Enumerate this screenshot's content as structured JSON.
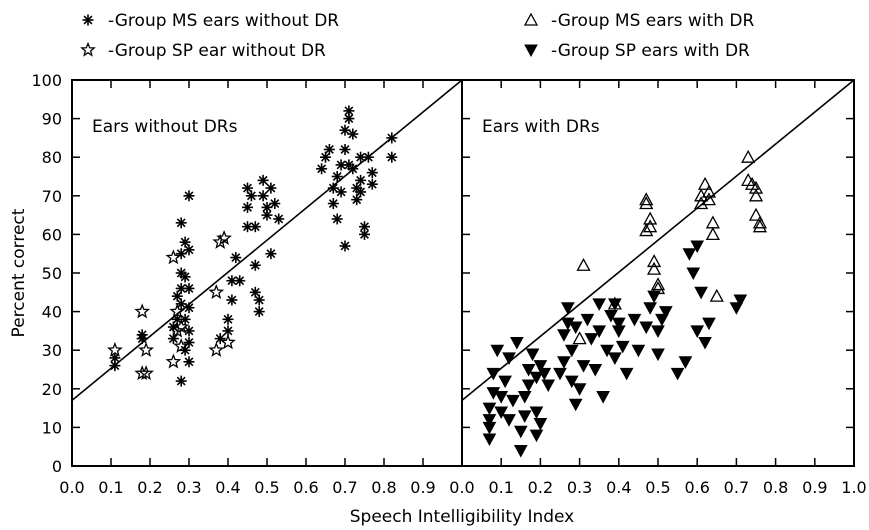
{
  "chart_data": {
    "type": "scatter",
    "xlabel": "Speech Intelligibility Index",
    "ylabel": "Percent correct",
    "xlim": [
      0,
      1.0
    ],
    "ylim": [
      0,
      100
    ],
    "yticks": [
      "0",
      "10",
      "20",
      "30",
      "40",
      "50",
      "60",
      "70",
      "80",
      "90",
      "100"
    ],
    "xticks_left": [
      "0.0",
      "0.1",
      "0.2",
      "0.3",
      "0.4",
      "0.5",
      "0.6",
      "0.7",
      "0.8",
      "0.9"
    ],
    "xticks_right": [
      "0.0",
      "0.1",
      "0.2",
      "0.3",
      "0.4",
      "0.5",
      "0.6",
      "0.7",
      "0.8",
      "0.9",
      "1.0"
    ],
    "grid": false,
    "legend": [
      {
        "label": "-Group MS ears without DR",
        "marker": "asterisk"
      },
      {
        "label": "-Group SP ear without DR",
        "marker": "star-open"
      },
      {
        "label": "-Group MS ears with DR",
        "marker": "triangle-open"
      },
      {
        "label": "-Group SP ears with DR",
        "marker": "triangle-down-filled"
      }
    ],
    "panels": [
      {
        "title": "Ears without DRs",
        "reference_line": {
          "x": [
            0,
            1.0
          ],
          "y": [
            17,
            100
          ]
        },
        "series": [
          {
            "name": "-Group MS ears without DR",
            "marker": "asterisk",
            "points": [
              [
                0.11,
                26
              ],
              [
                0.11,
                28
              ],
              [
                0.18,
                34
              ],
              [
                0.18,
                33
              ],
              [
                0.26,
                36
              ],
              [
                0.26,
                33
              ],
              [
                0.27,
                38
              ],
              [
                0.27,
                44
              ],
              [
                0.28,
                63
              ],
              [
                0.28,
                55
              ],
              [
                0.28,
                50
              ],
              [
                0.28,
                46
              ],
              [
                0.28,
                42
              ],
              [
                0.28,
                22
              ],
              [
                0.29,
                58
              ],
              [
                0.29,
                49
              ],
              [
                0.29,
                38
              ],
              [
                0.29,
                30
              ],
              [
                0.3,
                70
              ],
              [
                0.3,
                56
              ],
              [
                0.3,
                46
              ],
              [
                0.3,
                41
              ],
              [
                0.3,
                35
              ],
              [
                0.3,
                32
              ],
              [
                0.3,
                27
              ],
              [
                0.38,
                33
              ],
              [
                0.4,
                35
              ],
              [
                0.4,
                38
              ],
              [
                0.41,
                43
              ],
              [
                0.41,
                48
              ],
              [
                0.42,
                54
              ],
              [
                0.43,
                48
              ],
              [
                0.45,
                67
              ],
              [
                0.45,
                72
              ],
              [
                0.45,
                62
              ],
              [
                0.46,
                70
              ],
              [
                0.47,
                62
              ],
              [
                0.47,
                52
              ],
              [
                0.47,
                45
              ],
              [
                0.48,
                40
              ],
              [
                0.48,
                43
              ],
              [
                0.49,
                74
              ],
              [
                0.49,
                70
              ],
              [
                0.5,
                65
              ],
              [
                0.5,
                67
              ],
              [
                0.51,
                55
              ],
              [
                0.51,
                72
              ],
              [
                0.52,
                68
              ],
              [
                0.53,
                64
              ],
              [
                0.64,
                77
              ],
              [
                0.65,
                80
              ],
              [
                0.66,
                82
              ],
              [
                0.67,
                72
              ],
              [
                0.67,
                68
              ],
              [
                0.68,
                75
              ],
              [
                0.68,
                64
              ],
              [
                0.69,
                78
              ],
              [
                0.69,
                71
              ],
              [
                0.7,
                82
              ],
              [
                0.7,
                57
              ],
              [
                0.7,
                87
              ],
              [
                0.71,
                92
              ],
              [
                0.71,
                90
              ],
              [
                0.71,
                78
              ],
              [
                0.72,
                86
              ],
              [
                0.72,
                77
              ],
              [
                0.73,
                72
              ],
              [
                0.73,
                69
              ],
              [
                0.74,
                80
              ],
              [
                0.74,
                74
              ],
              [
                0.74,
                71
              ],
              [
                0.75,
                62
              ],
              [
                0.75,
                60
              ],
              [
                0.76,
                80
              ],
              [
                0.77,
                76
              ],
              [
                0.77,
                73
              ],
              [
                0.82,
                85
              ],
              [
                0.82,
                80
              ]
            ]
          },
          {
            "name": "-Group SP ear without DR",
            "marker": "star-open",
            "points": [
              [
                0.11,
                30
              ],
              [
                0.18,
                40
              ],
              [
                0.18,
                24
              ],
              [
                0.19,
                30
              ],
              [
                0.19,
                24
              ],
              [
                0.26,
                54
              ],
              [
                0.26,
                27
              ],
              [
                0.27,
                40
              ],
              [
                0.27,
                35
              ],
              [
                0.28,
                31
              ],
              [
                0.28,
                36
              ],
              [
                0.37,
                45
              ],
              [
                0.37,
                30
              ],
              [
                0.38,
                58
              ],
              [
                0.39,
                59
              ],
              [
                0.4,
                32
              ]
            ]
          }
        ]
      },
      {
        "title": "Ears with DRs",
        "reference_line": {
          "x": [
            0,
            1.0
          ],
          "y": [
            17,
            100
          ]
        },
        "series": [
          {
            "name": "-Group MS ears with DR",
            "marker": "triangle-open",
            "points": [
              [
                0.3,
                33
              ],
              [
                0.31,
                52
              ],
              [
                0.39,
                42
              ],
              [
                0.47,
                69
              ],
              [
                0.47,
                68
              ],
              [
                0.47,
                61
              ],
              [
                0.48,
                64
              ],
              [
                0.48,
                62
              ],
              [
                0.49,
                53
              ],
              [
                0.49,
                51
              ],
              [
                0.5,
                47
              ],
              [
                0.5,
                46
              ],
              [
                0.61,
                70
              ],
              [
                0.61,
                68
              ],
              [
                0.62,
                73
              ],
              [
                0.63,
                71
              ],
              [
                0.63,
                69
              ],
              [
                0.64,
                60
              ],
              [
                0.64,
                63
              ],
              [
                0.65,
                44
              ],
              [
                0.73,
                80
              ],
              [
                0.73,
                74
              ],
              [
                0.74,
                73
              ],
              [
                0.75,
                72
              ],
              [
                0.75,
                70
              ],
              [
                0.75,
                65
              ],
              [
                0.76,
                62
              ],
              [
                0.76,
                63
              ]
            ]
          },
          {
            "name": "-Group SP ears with DR",
            "marker": "triangle-down-filled",
            "points": [
              [
                0.07,
                7
              ],
              [
                0.07,
                10
              ],
              [
                0.07,
                12
              ],
              [
                0.07,
                15
              ],
              [
                0.08,
                19
              ],
              [
                0.08,
                24
              ],
              [
                0.09,
                30
              ],
              [
                0.1,
                14
              ],
              [
                0.1,
                18
              ],
              [
                0.11,
                22
              ],
              [
                0.12,
                28
              ],
              [
                0.12,
                12
              ],
              [
                0.13,
                17
              ],
              [
                0.14,
                32
              ],
              [
                0.15,
                4
              ],
              [
                0.15,
                9
              ],
              [
                0.16,
                13
              ],
              [
                0.16,
                18
              ],
              [
                0.17,
                21
              ],
              [
                0.17,
                25
              ],
              [
                0.18,
                29
              ],
              [
                0.19,
                23
              ],
              [
                0.19,
                14
              ],
              [
                0.19,
                8
              ],
              [
                0.2,
                11
              ],
              [
                0.2,
                26
              ],
              [
                0.21,
                24
              ],
              [
                0.22,
                21
              ],
              [
                0.25,
                24
              ],
              [
                0.26,
                27
              ],
              [
                0.26,
                34
              ],
              [
                0.27,
                37
              ],
              [
                0.27,
                41
              ],
              [
                0.28,
                30
              ],
              [
                0.28,
                22
              ],
              [
                0.29,
                16
              ],
              [
                0.29,
                36
              ],
              [
                0.3,
                20
              ],
              [
                0.31,
                26
              ],
              [
                0.32,
                38
              ],
              [
                0.33,
                33
              ],
              [
                0.34,
                25
              ],
              [
                0.35,
                42
              ],
              [
                0.35,
                35
              ],
              [
                0.36,
                18
              ],
              [
                0.37,
                30
              ],
              [
                0.38,
                39
              ],
              [
                0.39,
                28
              ],
              [
                0.39,
                42
              ],
              [
                0.4,
                35
              ],
              [
                0.4,
                37
              ],
              [
                0.41,
                31
              ],
              [
                0.42,
                24
              ],
              [
                0.44,
                38
              ],
              [
                0.45,
                30
              ],
              [
                0.47,
                36
              ],
              [
                0.48,
                41
              ],
              [
                0.49,
                44
              ],
              [
                0.5,
                35
              ],
              [
                0.5,
                29
              ],
              [
                0.51,
                38
              ],
              [
                0.52,
                40
              ],
              [
                0.55,
                24
              ],
              [
                0.57,
                27
              ],
              [
                0.58,
                55
              ],
              [
                0.59,
                50
              ],
              [
                0.6,
                35
              ],
              [
                0.6,
                57
              ],
              [
                0.61,
                45
              ],
              [
                0.62,
                32
              ],
              [
                0.63,
                37
              ],
              [
                0.7,
                41
              ],
              [
                0.71,
                43
              ]
            ]
          }
        ]
      }
    ]
  }
}
